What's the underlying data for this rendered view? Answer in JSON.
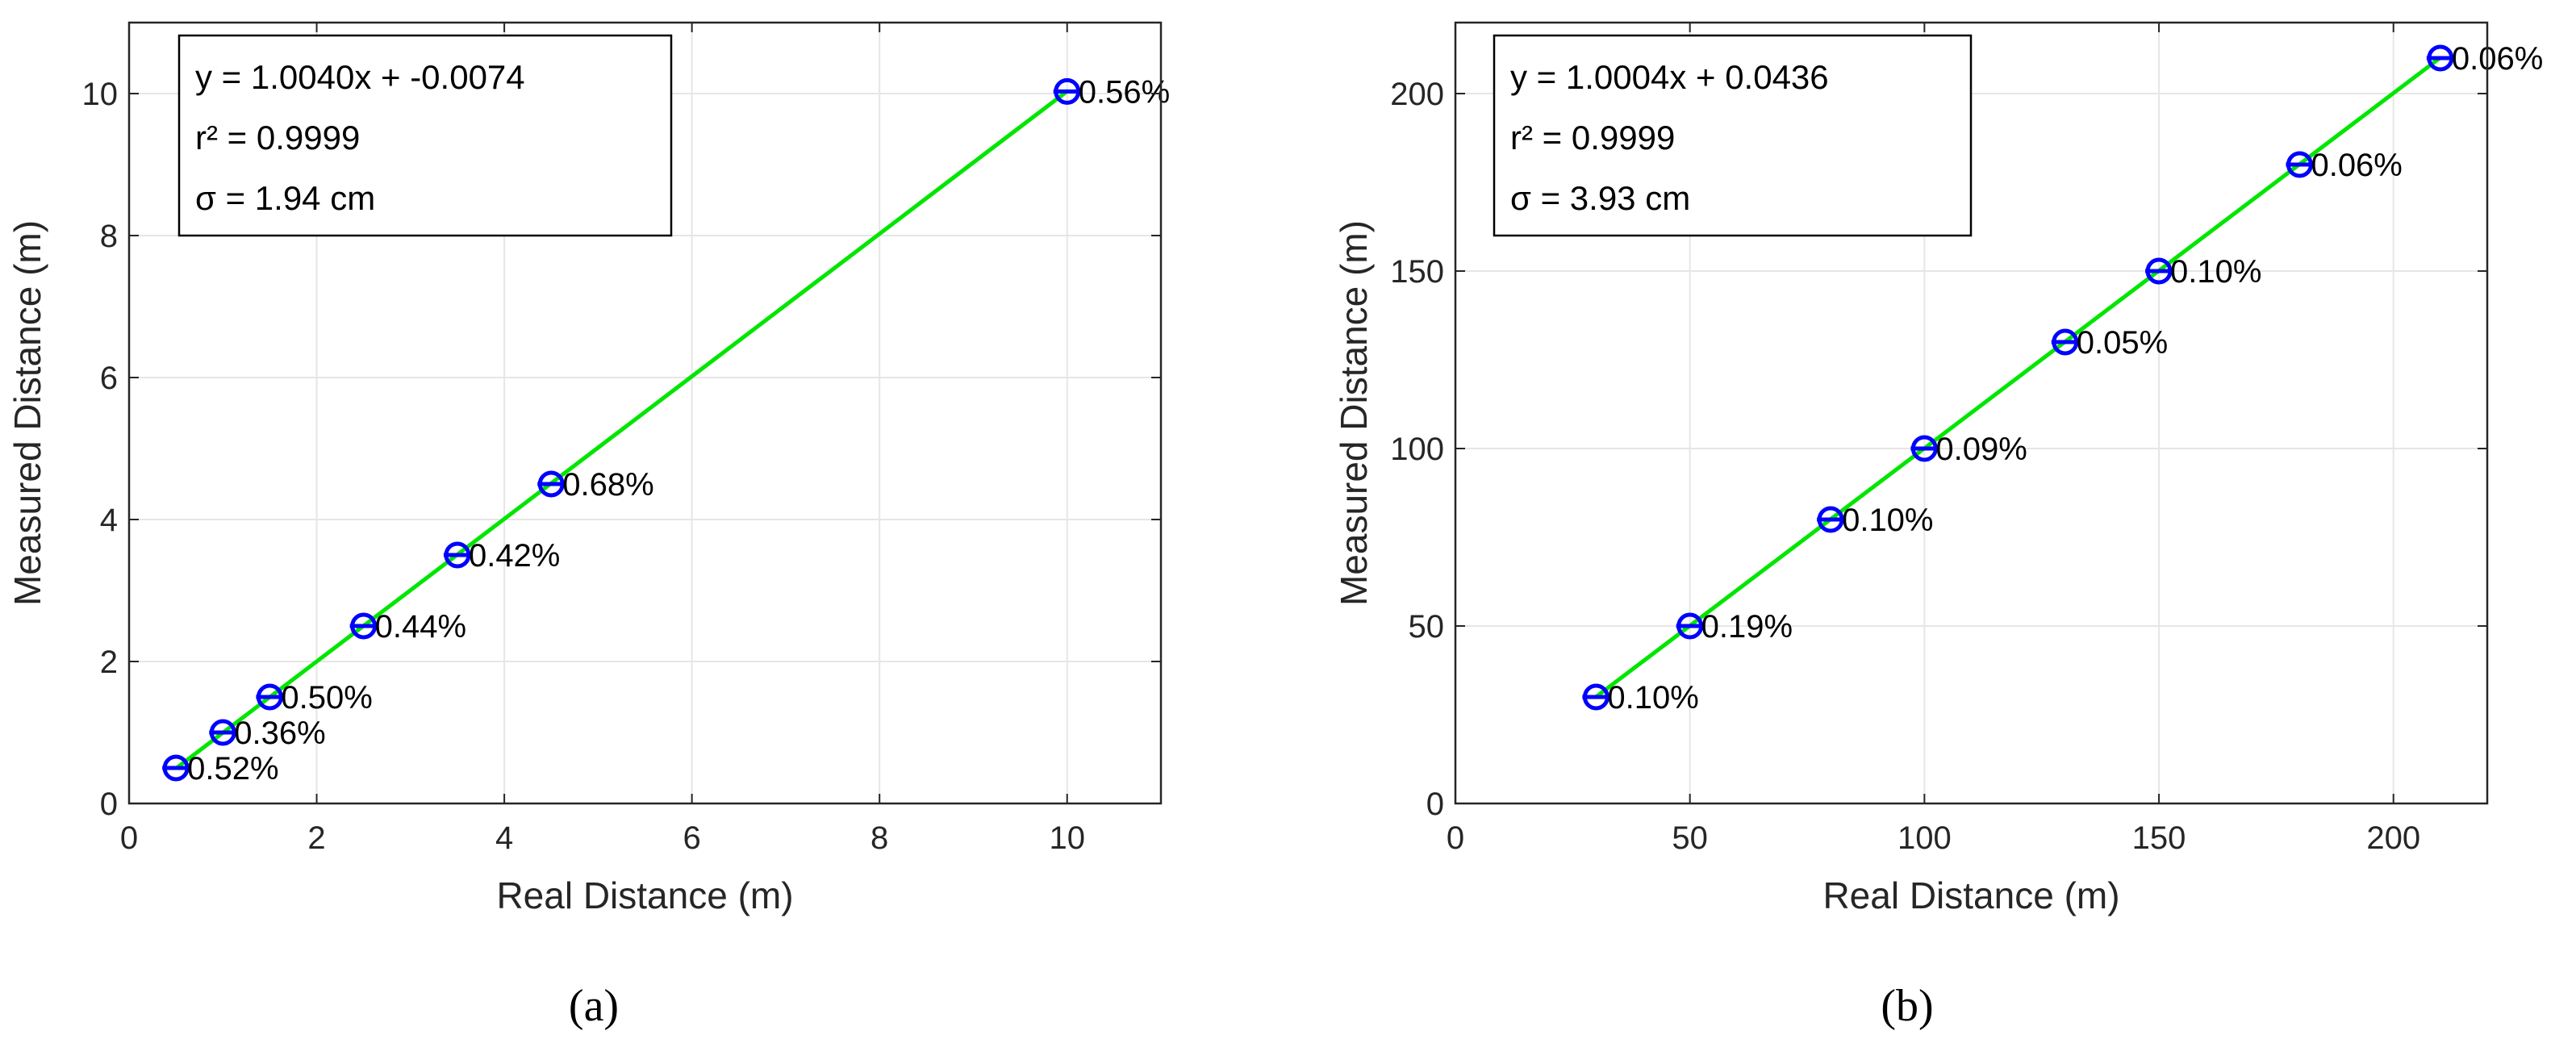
{
  "colors": {
    "fit_line": "#00e600",
    "marker": "#0000ff",
    "grid": "#e6e6e6",
    "axis": "#262626"
  },
  "chart_data": [
    {
      "type": "scatter",
      "panel": "(a)",
      "xlabel": "Real Distance (m)",
      "ylabel": "Measured Distance (m)",
      "xlim": [
        0,
        11
      ],
      "ylim": [
        0,
        11
      ],
      "grid": true,
      "xticks": [
        0,
        2,
        4,
        6,
        8,
        10
      ],
      "yticks": [
        0,
        2,
        4,
        6,
        8,
        10
      ],
      "x": [
        0.5,
        1.0,
        1.5,
        2.5,
        3.5,
        4.5,
        10.0
      ],
      "y": [
        0.5,
        1.0,
        1.5,
        2.5,
        3.5,
        4.5,
        10.03
      ],
      "point_labels": [
        "0.52%",
        "0.36%",
        "0.50%",
        "0.44%",
        "0.42%",
        "0.68%",
        "0.56%"
      ],
      "fit": {
        "slope": 1.004,
        "intercept": -0.0074,
        "x_range": [
          0.5,
          10.0
        ]
      },
      "annotations": [
        "y = 1.0040x + -0.0074",
        "r² = 0.9999",
        "σ = 1.94 cm"
      ]
    },
    {
      "type": "scatter",
      "panel": "(b)",
      "xlabel": "Real Distance (m)",
      "ylabel": "Measured Distance (m)",
      "xlim": [
        0,
        220
      ],
      "ylim": [
        0,
        220
      ],
      "grid": true,
      "xticks": [
        0,
        50,
        100,
        150,
        200
      ],
      "yticks": [
        0,
        50,
        100,
        150,
        200
      ],
      "x": [
        30,
        50,
        80,
        100,
        130,
        150,
        180,
        210
      ],
      "y": [
        30,
        50,
        80,
        100,
        130,
        150,
        180,
        210
      ],
      "point_labels": [
        "0.10%",
        "0.19%",
        "0.10%",
        "0.09%",
        "0.05%",
        "0.10%",
        "0.06%",
        "0.06%"
      ],
      "fit": {
        "slope": 1.0004,
        "intercept": 0.0436,
        "x_range": [
          30,
          210
        ]
      },
      "annotations": [
        "y = 1.0004x + 0.0436",
        "r² = 0.9999",
        "σ = 3.93 cm"
      ]
    }
  ]
}
